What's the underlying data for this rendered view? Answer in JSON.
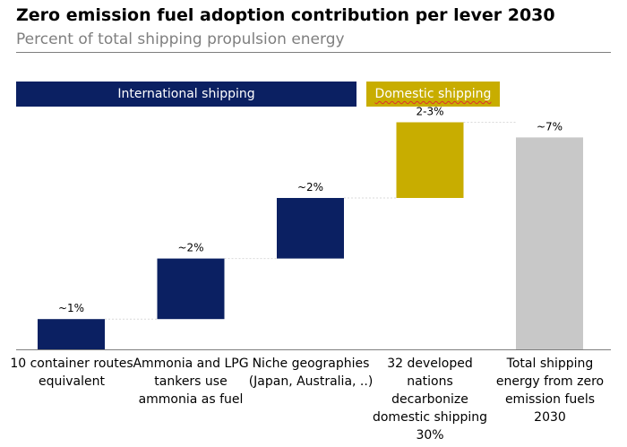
{
  "header": {
    "title": "Zero emission fuel adoption contribution per lever 2030",
    "subtitle": "Percent of total shipping propulsion energy"
  },
  "banners": {
    "international": "International shipping",
    "domestic": "Domestic shipping"
  },
  "colors": {
    "international": "#0b2062",
    "domestic": "#c8ad00",
    "total": "#c8c8c8"
  },
  "chart_data": {
    "type": "bar",
    "subtype": "waterfall",
    "title": "Zero emission fuel adoption contribution per lever 2030",
    "subtitle": "Percent of total shipping propulsion energy",
    "categories": [
      "10 container routes equivalent",
      "Ammonia and LPG tankers use ammonia as fuel",
      "Niche geographies (Japan, Australia, ..)",
      "32 developed nations decarbonize domestic shipping 30%",
      "Total shipping energy from zero emission fuels 2030"
    ],
    "values": [
      1,
      2,
      2,
      2.5,
      7
    ],
    "data_labels": [
      "~1%",
      "~2%",
      "~2%",
      "2-3%",
      "~7%"
    ],
    "groups": [
      "international",
      "international",
      "international",
      "domestic",
      "total"
    ],
    "ylim": [
      0,
      7.5
    ],
    "grid": false,
    "legend": "none"
  },
  "labels": {
    "cat1": "10 container routes equivalent",
    "cat2": "Ammonia and LPG tankers use ammonia as fuel",
    "cat3": "Niche geographies (Japan, Australia, ..)",
    "cat4": "32 developed nations decarbonize domestic shipping 30%",
    "cat5": "Total shipping energy from zero emission fuels 2030"
  }
}
